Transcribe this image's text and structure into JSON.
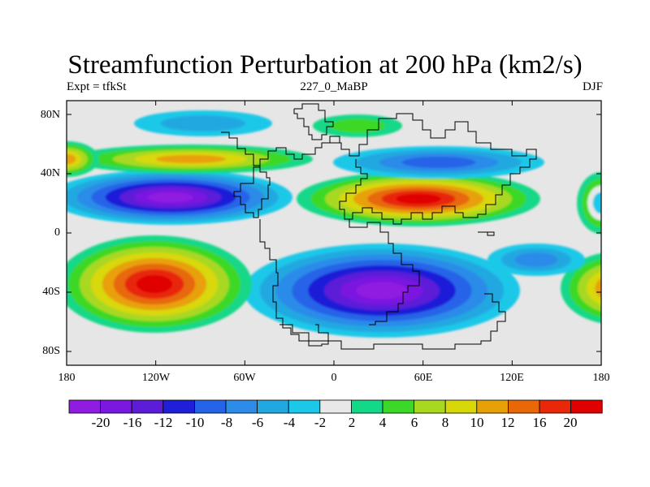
{
  "title": "Streamfunction Perturbation at 200 hPa (km2/s)",
  "subtitle_left": "Expt = tfkSt",
  "subtitle_center": "227_0_MaBP",
  "subtitle_right": "DJF",
  "axes": {
    "y_labels": [
      "80N",
      "40N",
      "0",
      "40S",
      "80S"
    ],
    "x_labels": [
      "180",
      "120W",
      "60W",
      "0",
      "60E",
      "120E",
      "180"
    ]
  },
  "colorbar": {
    "labels": [
      "-20",
      "-16",
      "-12",
      "-10",
      "-8",
      "-6",
      "-4",
      "-2",
      "2",
      "4",
      "6",
      "8",
      "10",
      "12",
      "16",
      "20"
    ],
    "colors": [
      "#8f1ce0",
      "#7a18e0",
      "#5c1cd8",
      "#1f1fd8",
      "#2563e8",
      "#2c8ce8",
      "#22a8e0",
      "#1cc8e8",
      "#e8e8e8",
      "#12d888",
      "#3cd828",
      "#a8d820",
      "#d8d808",
      "#e8a008",
      "#e86808",
      "#e82808",
      "#e00000"
    ]
  },
  "colors": {
    "null_band": "#e6e6e6",
    "outline": "#000000"
  }
}
